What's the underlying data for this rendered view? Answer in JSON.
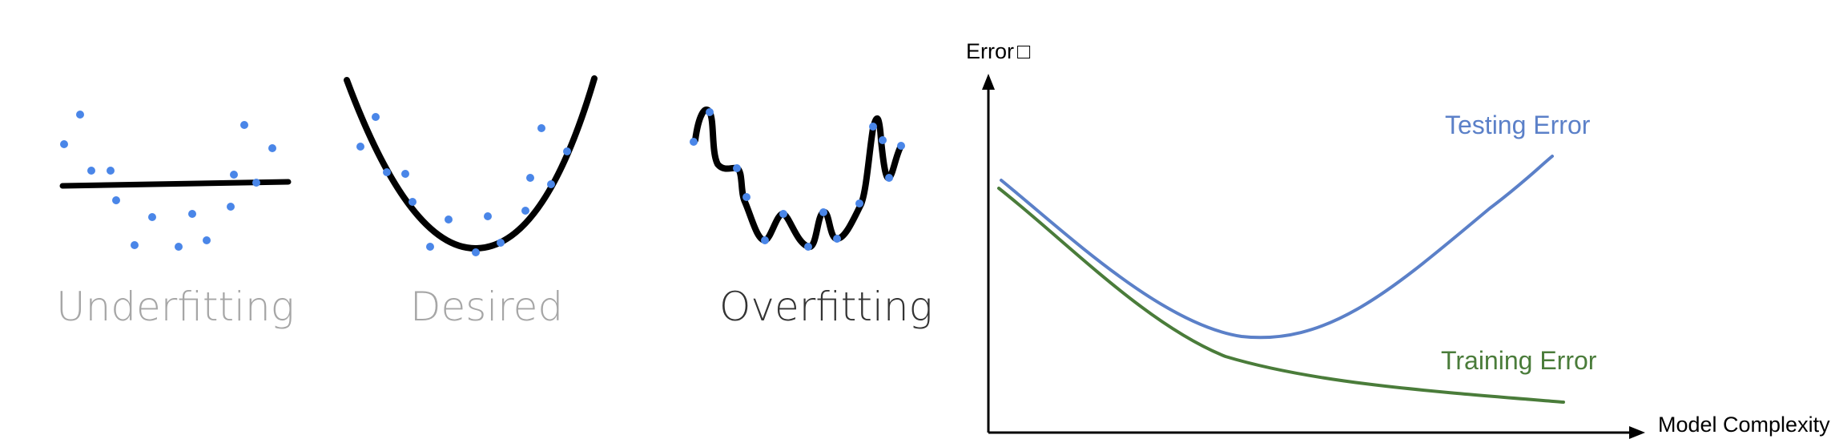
{
  "panels": {
    "underfitting": {
      "label": "Underfitting",
      "label_color": "#a6a6a6"
    },
    "desired": {
      "label": "Desired",
      "label_color": "#a6a6a6"
    },
    "overfitting": {
      "label": "Overfitting",
      "label_color": "#333333"
    }
  },
  "colors": {
    "points": "#4a86e8",
    "fit_line": "#000000",
    "testing": "#5b80c8",
    "training": "#4a7c3a",
    "axis": "#000000"
  },
  "chart": {
    "y_axis_label": "Error",
    "y_axis_marker": "□",
    "x_axis_label": "Model Complexity",
    "testing_label": "Testing Error",
    "training_label": "Training Error"
  },
  "chart_data": {
    "type": "line",
    "xlabel": "Model Complexity",
    "ylabel": "Error",
    "grid": false,
    "series": [
      {
        "name": "Testing Error"
      },
      {
        "name": "Training Error"
      }
    ]
  }
}
